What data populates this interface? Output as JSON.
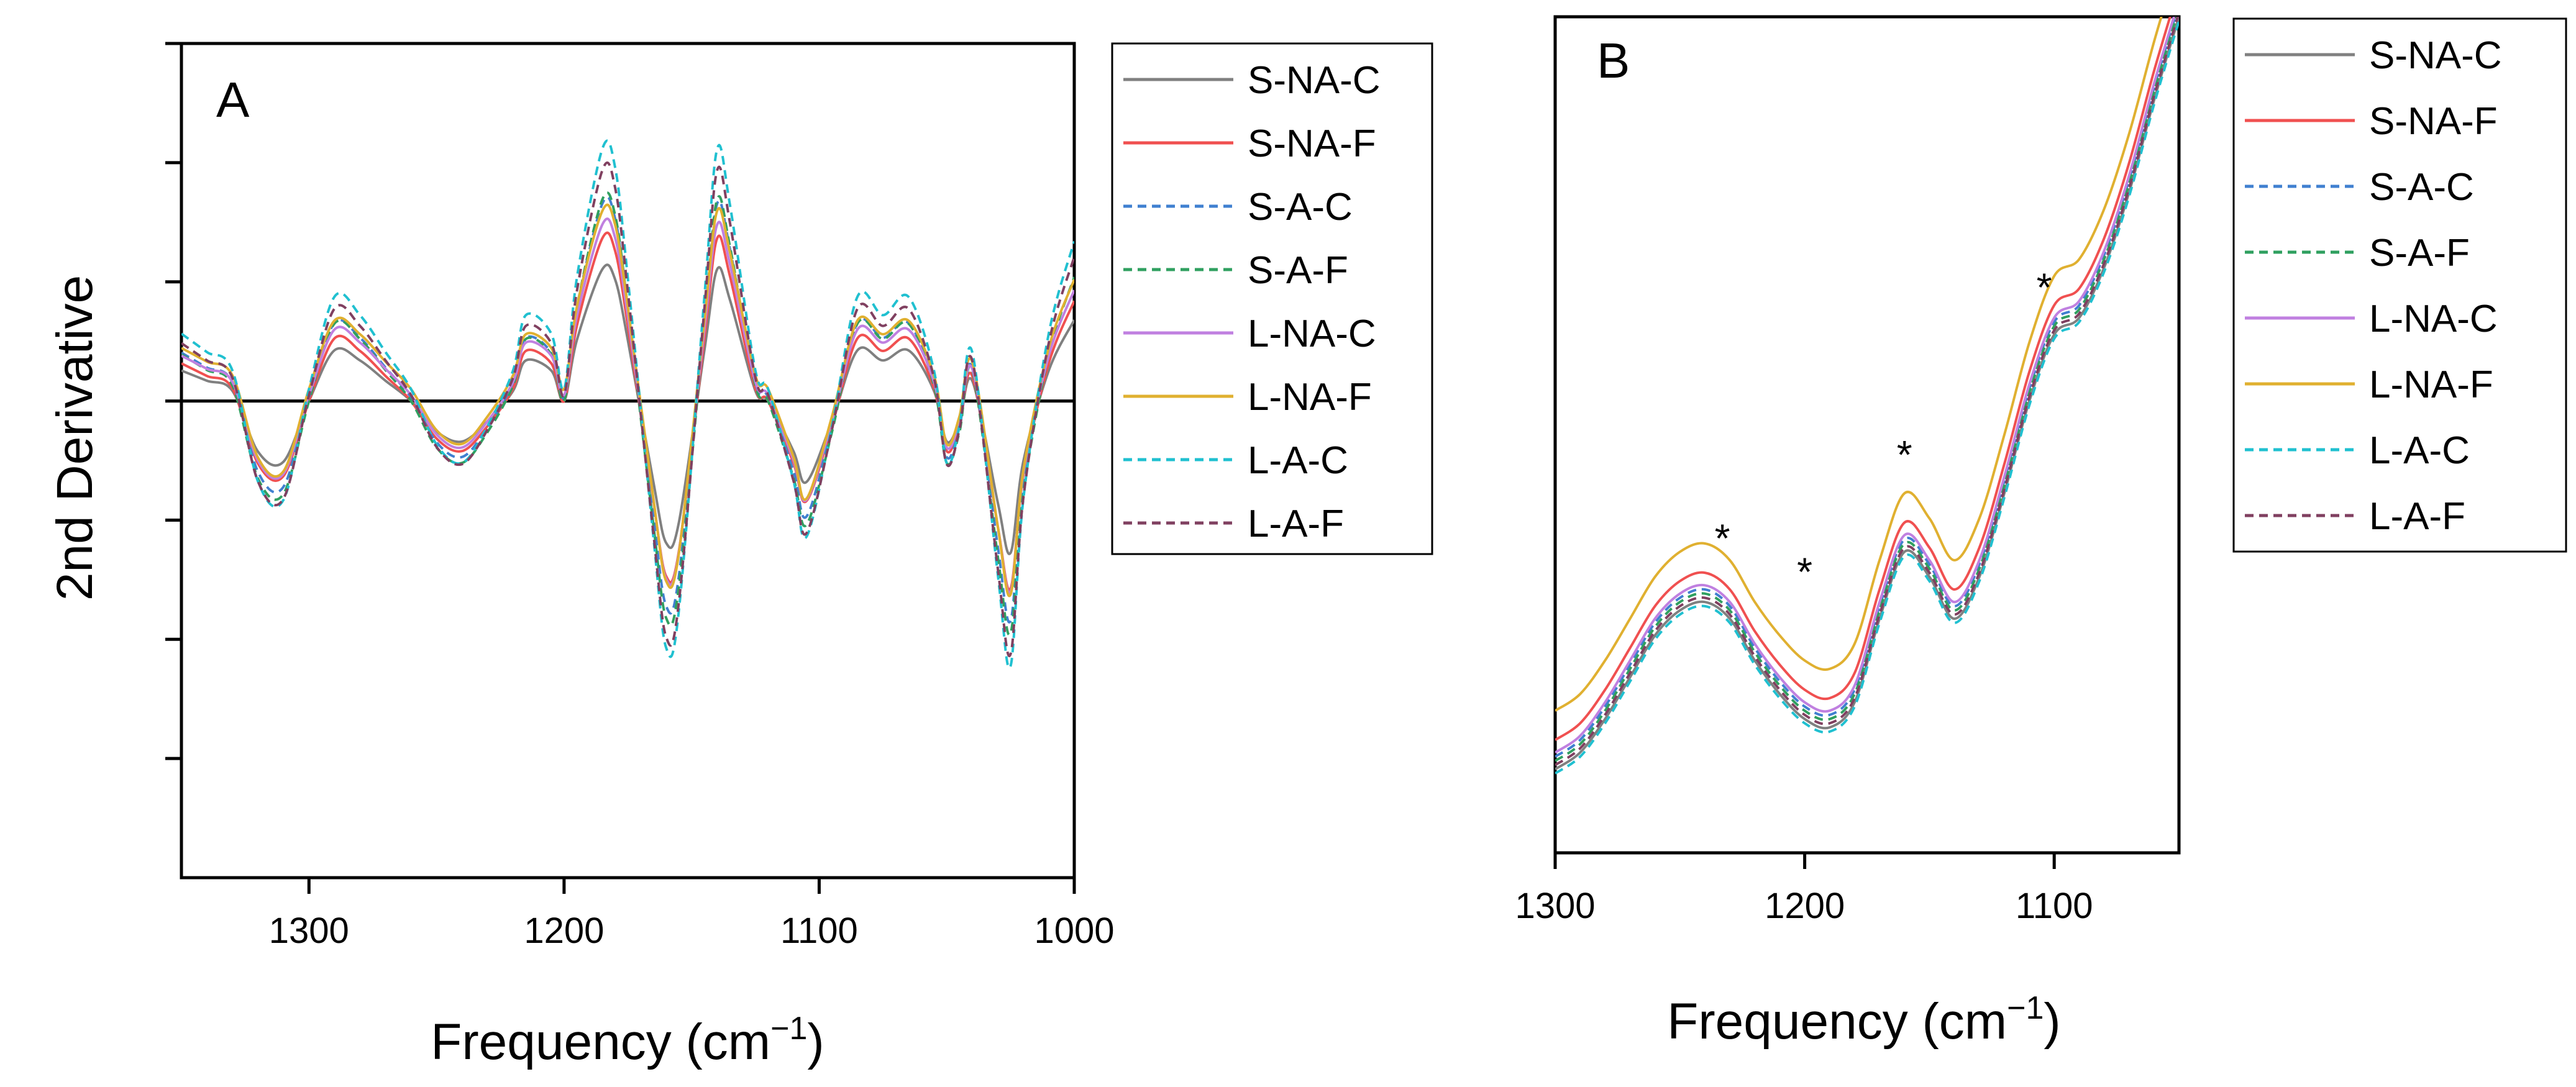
{
  "chart_data": [
    {
      "type": "line",
      "panel": "A",
      "title": "",
      "xlabel": "Frequency (cm",
      "xlabel_sup": "−1",
      "xlabel_close": ")",
      "ylabel": "2nd Derivative",
      "xlim": [
        1350,
        1000
      ],
      "ylim": [
        -4,
        3
      ],
      "xticks": [
        1300,
        1200,
        1100,
        1000
      ],
      "xtick_labels": [
        "1300",
        "1200",
        "1100",
        "1000"
      ],
      "yticks": [
        -3,
        -2,
        -1,
        0,
        1,
        2,
        3
      ],
      "zero_line": 0,
      "legend_position": "right",
      "x": [
        1350,
        1340,
        1330,
        1320,
        1310,
        1300,
        1290,
        1280,
        1270,
        1260,
        1250,
        1240,
        1230,
        1220,
        1215,
        1205,
        1200,
        1195,
        1185,
        1180,
        1175,
        1165,
        1160,
        1155,
        1145,
        1140,
        1135,
        1125,
        1120,
        1110,
        1105,
        1095,
        1085,
        1075,
        1065,
        1055,
        1050,
        1045,
        1040,
        1030,
        1025,
        1020,
        1010,
        1000
      ],
      "base": [
        0.3,
        0.2,
        0.1,
        -0.5,
        -0.6,
        0.0,
        0.5,
        0.4,
        0.2,
        0.0,
        -0.3,
        -0.4,
        -0.2,
        0.1,
        0.4,
        0.3,
        0.0,
        0.6,
        1.3,
        1.2,
        0.6,
        -0.8,
        -1.4,
        -1.2,
        0.5,
        1.3,
        1.0,
        0.1,
        0.0,
        -0.5,
        -0.8,
        -0.2,
        0.5,
        0.4,
        0.5,
        0.1,
        -0.4,
        -0.2,
        0.2,
        -1.0,
        -1.5,
        -0.6,
        0.3,
        0.8
      ],
      "series": [
        {
          "name": "S-NA-C",
          "scale": 0.85,
          "offset": 0.0,
          "color": "#808080",
          "dash": "solid"
        },
        {
          "name": "S-NA-F",
          "scale": 1.05,
          "offset": 0.0,
          "color": "#f05050",
          "dash": "solid"
        },
        {
          "name": "S-A-C",
          "scale": 1.25,
          "offset": 0.03,
          "color": "#4080d0",
          "dash": "dash"
        },
        {
          "name": "S-A-F",
          "scale": 1.3,
          "offset": 0.0,
          "color": "#30a060",
          "dash": "dash"
        },
        {
          "name": "L-NA-C",
          "scale": 1.1,
          "offset": 0.05,
          "color": "#c080e0",
          "dash": "solid"
        },
        {
          "name": "L-NA-F",
          "scale": 1.15,
          "offset": 0.1,
          "color": "#e0b030",
          "dash": "solid"
        },
        {
          "name": "L-A-C",
          "scale": 1.55,
          "offset": 0.1,
          "color": "#20c0d0",
          "dash": "dash"
        },
        {
          "name": "L-A-F",
          "scale": 1.45,
          "offset": 0.05,
          "color": "#804060",
          "dash": "dash"
        }
      ]
    },
    {
      "type": "line",
      "panel": "B",
      "title": "",
      "xlabel": "Frequency (cm",
      "xlabel_sup": "−1",
      "xlabel_close": ")",
      "ylabel": "",
      "xlim": [
        1300,
        1050
      ],
      "ylim": [
        0,
        10
      ],
      "xticks": [
        1300,
        1200,
        1100
      ],
      "xtick_labels": [
        "1300",
        "1200",
        "1100"
      ],
      "legend_position": "right",
      "annotations": [
        {
          "text": "*",
          "x": 1233,
          "y": 3.6
        },
        {
          "text": "*",
          "x": 1200,
          "y": 3.2
        },
        {
          "text": "*",
          "x": 1160,
          "y": 4.6
        },
        {
          "text": "*",
          "x": 1104,
          "y": 6.6
        }
      ],
      "x": [
        1300,
        1290,
        1280,
        1270,
        1260,
        1250,
        1240,
        1230,
        1220,
        1210,
        1200,
        1190,
        1180,
        1170,
        1160,
        1150,
        1140,
        1130,
        1120,
        1110,
        1100,
        1090,
        1080,
        1070,
        1060,
        1050
      ],
      "base": [
        1.0,
        1.2,
        1.6,
        2.1,
        2.6,
        2.9,
        3.0,
        2.8,
        2.3,
        1.9,
        1.6,
        1.5,
        1.8,
        2.8,
        3.6,
        3.3,
        2.8,
        3.3,
        4.3,
        5.4,
        6.2,
        6.4,
        7.0,
        7.9,
        9.0,
        10.0
      ],
      "series": [
        {
          "name": "S-NA-C",
          "offset": 0.0,
          "color": "#808080",
          "dash": "solid"
        },
        {
          "name": "S-NA-F",
          "offset": 0.35,
          "color": "#f05050",
          "dash": "solid"
        },
        {
          "name": "S-A-C",
          "offset": 0.15,
          "color": "#4080d0",
          "dash": "dash"
        },
        {
          "name": "S-A-F",
          "offset": 0.1,
          "color": "#30a060",
          "dash": "dash"
        },
        {
          "name": "L-NA-C",
          "offset": 0.2,
          "color": "#c080e0",
          "dash": "solid"
        },
        {
          "name": "L-NA-F",
          "offset": 0.7,
          "color": "#e0b030",
          "dash": "solid"
        },
        {
          "name": "L-A-C",
          "offset": -0.05,
          "color": "#20c0d0",
          "dash": "dash"
        },
        {
          "name": "L-A-F",
          "offset": 0.05,
          "color": "#804060",
          "dash": "dash"
        }
      ]
    }
  ]
}
